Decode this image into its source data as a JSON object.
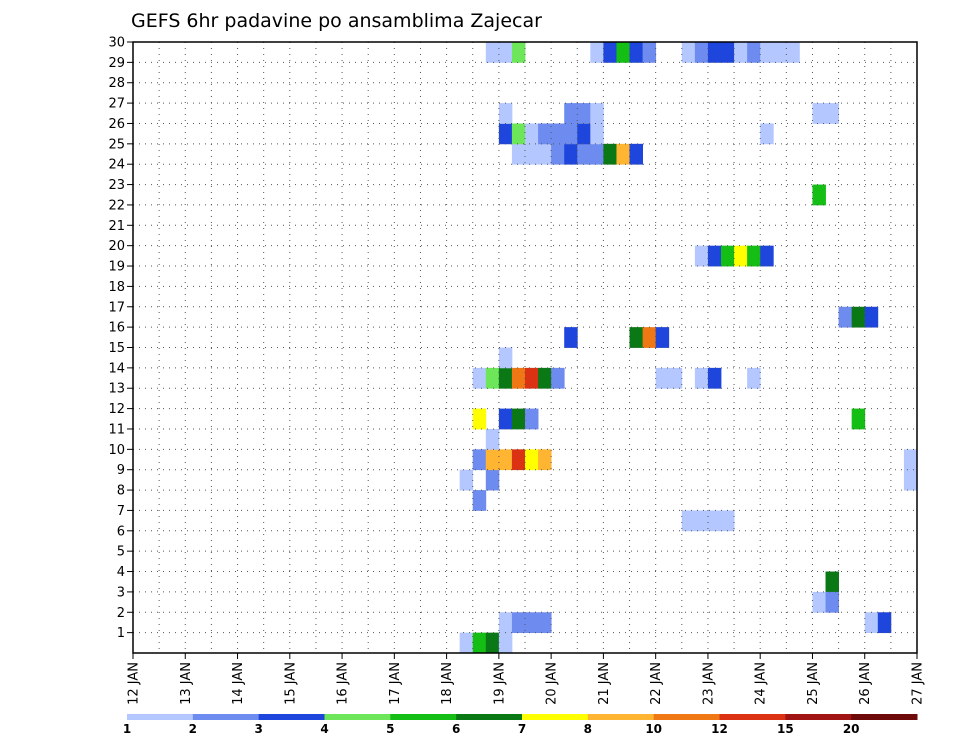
{
  "chart_data": {
    "type": "heatmap",
    "title": "GEFS 6hr padavine po ansamblima Zajecar",
    "x_ticks": [
      "12 JAN",
      "13 JAN",
      "14 JAN",
      "15 JAN",
      "16 JAN",
      "17 JAN",
      "18 JAN",
      "19 JAN",
      "20 JAN",
      "21 JAN",
      "22 JAN",
      "23 JAN",
      "24 JAN",
      "25 JAN",
      "26 JAN",
      "27 JAN"
    ],
    "x_range_days": [
      12,
      27
    ],
    "y_ticks": [
      "1",
      "2",
      "3",
      "4",
      "5",
      "6",
      "7",
      "8",
      "9",
      "10",
      "11",
      "12",
      "13",
      "14",
      "15",
      "16",
      "17",
      "18",
      "19",
      "20",
      "21",
      "22",
      "23",
      "24",
      "25",
      "26",
      "27",
      "28",
      "29",
      "30"
    ],
    "y_range": [
      0,
      30
    ],
    "grid": true,
    "colorbar": {
      "labels": [
        "1",
        "2",
        "3",
        "4",
        "5",
        "6",
        "7",
        "8",
        "10",
        "12",
        "15",
        "20"
      ],
      "colors": [
        "#b4c8ff",
        "#6e8cf0",
        "#1e46dc",
        "#6ee65a",
        "#14be14",
        "#0a7814",
        "#ffff00",
        "#ffb432",
        "#f07814",
        "#dc3214",
        "#a01414",
        "#6e0a0a"
      ]
    },
    "cells": [
      [
        18.25,
        0,
        1
      ],
      [
        18.5,
        0,
        5
      ],
      [
        18.75,
        0,
        6
      ],
      [
        19.0,
        0,
        1
      ],
      [
        19.0,
        1,
        1
      ],
      [
        19.25,
        1,
        2
      ],
      [
        19.5,
        1,
        2
      ],
      [
        19.75,
        1,
        2
      ],
      [
        26.0,
        1,
        1
      ],
      [
        26.25,
        1,
        3
      ],
      [
        25.25,
        3,
        6
      ],
      [
        25.0,
        2,
        1
      ],
      [
        25.25,
        2,
        2
      ],
      [
        22.5,
        6,
        1
      ],
      [
        22.75,
        6,
        1
      ],
      [
        23.0,
        6,
        1
      ],
      [
        23.25,
        6,
        1
      ],
      [
        18.5,
        7,
        2
      ],
      [
        18.25,
        8,
        1
      ],
      [
        18.75,
        8,
        2
      ],
      [
        26.75,
        8,
        1
      ],
      [
        26.75,
        9,
        1
      ],
      [
        18.5,
        9,
        2
      ],
      [
        18.75,
        9,
        8
      ],
      [
        19.0,
        9,
        8
      ],
      [
        19.25,
        9,
        10
      ],
      [
        19.5,
        9,
        7
      ],
      [
        19.75,
        9,
        8
      ],
      [
        18.75,
        10,
        1
      ],
      [
        18.5,
        11,
        7
      ],
      [
        19.0,
        11,
        3
      ],
      [
        19.25,
        11,
        6
      ],
      [
        19.5,
        11,
        2
      ],
      [
        25.75,
        11,
        5
      ],
      [
        18.5,
        13,
        1
      ],
      [
        18.75,
        13,
        4
      ],
      [
        19.0,
        13,
        6
      ],
      [
        19.25,
        13,
        9
      ],
      [
        19.5,
        13,
        10
      ],
      [
        19.75,
        13,
        6
      ],
      [
        20.0,
        13,
        2
      ],
      [
        22.0,
        13,
        1
      ],
      [
        22.25,
        13,
        1
      ],
      [
        22.75,
        13,
        1
      ],
      [
        23.0,
        13,
        3
      ],
      [
        23.75,
        13,
        1
      ],
      [
        19.0,
        14,
        1
      ],
      [
        20.25,
        15,
        3
      ],
      [
        21.5,
        15,
        6
      ],
      [
        21.75,
        15,
        9
      ],
      [
        22.0,
        15,
        3
      ],
      [
        25.5,
        16,
        2
      ],
      [
        25.75,
        16,
        6
      ],
      [
        26.0,
        16,
        3
      ],
      [
        22.75,
        19,
        1
      ],
      [
        23.0,
        19,
        3
      ],
      [
        23.25,
        19,
        5
      ],
      [
        23.5,
        19,
        7
      ],
      [
        23.75,
        19,
        5
      ],
      [
        24.0,
        19,
        3
      ],
      [
        25.0,
        22,
        5
      ],
      [
        19.25,
        24,
        1
      ],
      [
        19.5,
        24,
        1
      ],
      [
        19.75,
        24,
        1
      ],
      [
        20.0,
        24,
        2
      ],
      [
        20.25,
        24,
        3
      ],
      [
        20.5,
        24,
        2
      ],
      [
        20.75,
        24,
        2
      ],
      [
        21.0,
        24,
        6
      ],
      [
        21.25,
        24,
        8
      ],
      [
        21.5,
        24,
        3
      ],
      [
        19.0,
        25,
        3
      ],
      [
        19.25,
        25,
        4
      ],
      [
        19.5,
        25,
        1
      ],
      [
        19.75,
        25,
        2
      ],
      [
        20.0,
        25,
        2
      ],
      [
        20.25,
        25,
        2
      ],
      [
        20.5,
        25,
        3
      ],
      [
        20.75,
        25,
        1
      ],
      [
        24.0,
        25,
        1
      ],
      [
        19.0,
        26,
        1
      ],
      [
        20.25,
        26,
        2
      ],
      [
        20.5,
        26,
        2
      ],
      [
        20.75,
        26,
        1
      ],
      [
        25.0,
        26,
        1
      ],
      [
        25.25,
        26,
        1
      ],
      [
        18.75,
        29,
        1
      ],
      [
        19.0,
        29,
        1
      ],
      [
        19.25,
        29,
        4
      ],
      [
        20.75,
        29,
        1
      ],
      [
        21.0,
        29,
        3
      ],
      [
        21.25,
        29,
        5
      ],
      [
        21.5,
        29,
        3
      ],
      [
        21.75,
        29,
        2
      ],
      [
        22.5,
        29,
        1
      ],
      [
        22.75,
        29,
        2
      ],
      [
        23.0,
        29,
        3
      ],
      [
        23.25,
        29,
        3
      ],
      [
        23.5,
        29,
        1
      ],
      [
        23.75,
        29,
        2
      ],
      [
        24.0,
        29,
        1
      ],
      [
        24.25,
        29,
        1
      ],
      [
        24.5,
        29,
        1
      ]
    ]
  }
}
